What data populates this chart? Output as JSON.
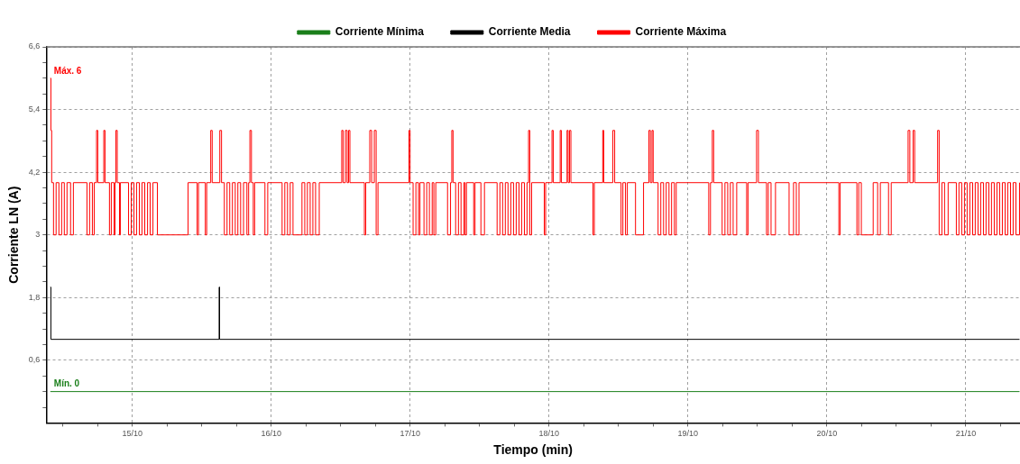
{
  "chart_data": {
    "type": "step",
    "xlabel": "Tiempo (min)",
    "ylabel": "Corriente LN (A)",
    "xlim": [
      "--10-14T09:07",
      "--10-21T09:22"
    ],
    "ylim": [
      -0.6,
      6.6
    ],
    "xticks": [
      {
        "value": "--10-14T12:00",
        "label": null
      },
      {
        "value": "--10-14T18:00",
        "label": null
      },
      {
        "value": "--10-15",
        "label": "15/10"
      },
      {
        "value": "--10-15T06:00",
        "label": null
      },
      {
        "value": "--10-15T12:00",
        "label": null
      },
      {
        "value": "--10-15T18:00",
        "label": null
      },
      {
        "value": "--10-16",
        "label": "16/10"
      },
      {
        "value": "--10-16T06:00",
        "label": null
      },
      {
        "value": "--10-16T12:00",
        "label": null
      },
      {
        "value": "--10-16T18:00",
        "label": null
      },
      {
        "value": "--10-17",
        "label": "17/10"
      },
      {
        "value": "--10-17T06:00",
        "label": null
      },
      {
        "value": "--10-17T12:00",
        "label": null
      },
      {
        "value": "--10-17T18:00",
        "label": null
      },
      {
        "value": "--10-18",
        "label": "18/10"
      },
      {
        "value": "--10-18T06:00",
        "label": null
      },
      {
        "value": "--10-18T12:00",
        "label": null
      },
      {
        "value": "--10-18T18:00",
        "label": null
      },
      {
        "value": "--10-19",
        "label": "19/10"
      },
      {
        "value": "--10-19T06:00",
        "label": null
      },
      {
        "value": "--10-19T12:00",
        "label": null
      },
      {
        "value": "--10-19T18:00",
        "label": null
      },
      {
        "value": "--10-20",
        "label": "20/10"
      },
      {
        "value": "--10-20T06:00",
        "label": null
      },
      {
        "value": "--10-20T12:00",
        "label": null
      },
      {
        "value": "--10-20T18:00",
        "label": null
      },
      {
        "value": "--10-21",
        "label": "21/10"
      },
      {
        "value": "--10-21T06:00",
        "label": null
      }
    ],
    "yticks": [
      {
        "value": -0.3,
        "label": null
      },
      {
        "value": 0,
        "label": null
      },
      {
        "value": 0.3,
        "label": null
      },
      {
        "value": 0.6,
        "label": "0,6"
      },
      {
        "value": 0.9,
        "label": null
      },
      {
        "value": 1.2,
        "label": null
      },
      {
        "value": 1.5,
        "label": null
      },
      {
        "value": 1.8,
        "label": "1,8"
      },
      {
        "value": 2.1,
        "label": null
      },
      {
        "value": 2.4,
        "label": null
      },
      {
        "value": 2.7,
        "label": null
      },
      3,
      {
        "value": 3.3,
        "label": null
      },
      {
        "value": 3.6,
        "label": null
      },
      {
        "value": 3.9,
        "label": null
      },
      {
        "value": 4.2,
        "label": "4,2"
      },
      {
        "value": 4.5,
        "label": null
      },
      {
        "value": 4.8,
        "label": null
      },
      {
        "value": 5.1,
        "label": null
      },
      {
        "value": 5.4,
        "label": "5,4"
      },
      {
        "value": 5.7,
        "label": null
      },
      {
        "value": 6,
        "label": null
      },
      {
        "value": 6.3,
        "label": null
      },
      {
        "value": 6.6,
        "label": "6,6"
      }
    ],
    "grid": true,
    "legend": "top",
    "marker": "none",
    "series": [
      {
        "name": "Corriente Mínima",
        "color": "#1a7f1a",
        "x": [
          "--10-14T09:49",
          "--10-21T09:17"
        ],
        "values": [
          0,
          0
        ]
      },
      {
        "name": "Corriente Media",
        "color": "#000000",
        "x": [
          "--10-14T09:49",
          "--10-14T09:55",
          "--10-15T14:59",
          "--10-15T15:04",
          "--10-21T09:17"
        ],
        "values": [
          2,
          1,
          2,
          1,
          1
        ]
      },
      {
        "name": "Corriente Máxima",
        "color": "#ff0000",
        "x": [
          "--10-14T09:49",
          "--10-14T09:55",
          "--10-14T10:03",
          "--10-14T10:22",
          "--10-14T10:49",
          "--10-14T11:18",
          "--10-14T11:46",
          "--10-14T12:14",
          "--10-14T12:42",
          "--10-14T13:19",
          "--10-14T13:48",
          "--10-14T16:09",
          "--10-14T16:36",
          "--10-14T17:05",
          "--10-14T17:24",
          "--10-14T17:48",
          "--10-14T18:01",
          "--10-14T19:03",
          "--10-14T19:16",
          "--10-14T20:02",
          "--10-14T20:21",
          "--10-14T20:50",
          "--10-14T21:00",
          "--10-14T21:09",
          "--10-14T21:23",
          "--10-14T21:46",
          "--10-14T21:55",
          "--10-14T23:20",
          "--10-14T23:48",
          "--10-15T00:16",
          "--10-15T00:43",
          "--10-15T01:12",
          "--10-15T01:39",
          "--10-15T02:08",
          "--10-15T02:37",
          "--10-15T03:04",
          "--10-15T03:33",
          "--10-15T04:19",
          "--10-15T09:37",
          "--10-15T11:11",
          "--10-15T11:25",
          "--10-15T12:36",
          "--10-15T12:50",
          "--10-15T13:32",
          "--10-15T13:47",
          "--10-15T15:06",
          "--10-15T15:24",
          "--10-15T15:53",
          "--10-15T16:21",
          "--10-15T16:49",
          "--10-15T17:17",
          "--10-15T17:46",
          "--10-15T18:13",
          "--10-15T18:42",
          "--10-15T19:12",
          "--10-15T19:47",
          "--10-15T20:05",
          "--10-15T20:18",
          "--10-15T20:34",
          "--10-15T20:53",
          "--10-15T21:07",
          "--10-15T22:54",
          "--10-15T23:23",
          "--10-16T01:52",
          "--10-16T02:20",
          "--10-16T02:48",
          "--10-16T03:16",
          "--10-16T03:45",
          "--10-16T05:18",
          "--10-16T05:47",
          "--10-16T06:14",
          "--10-16T06:43",
          "--10-16T07:11",
          "--10-16T07:39",
          "--10-16T08:17",
          "--10-16T12:10",
          "--10-16T12:24",
          "--10-16T12:48",
          "--10-16T13:06",
          "--10-16T13:21",
          "--10-16T13:35",
          "--10-16T16:05",
          "--10-16T16:19",
          "--10-16T17:01",
          "--10-16T17:20",
          "--10-16T17:48",
          "--10-16T18:07",
          "--10-16T18:26",
          "--10-16T23:47",
          "--10-16T23:59",
          "--10-17T00:30",
          "--10-17T00:59",
          "--10-17T01:26",
          "--10-17T01:41",
          "--10-17T02:23",
          "--10-17T02:51",
          "--10-17T03:19",
          "--10-17T03:48",
          "--10-17T04:05",
          "--10-17T04:25",
          "--10-17T06:27",
          "--10-17T06:58",
          "--10-17T07:11",
          "--10-17T07:24",
          "--10-17T07:51",
          "--10-17T08:20",
          "--10-17T08:47",
          "--10-17T09:16",
          "--10-17T09:29",
          "--10-17T09:43",
          "--10-17T10:58",
          "--10-17T11:12",
          "--10-17T12:13",
          "--10-17T12:50",
          "--10-17T15:01",
          "--10-17T15:30",
          "--10-17T15:58",
          "--10-17T16:26",
          "--10-17T16:54",
          "--10-17T17:23",
          "--10-17T17:51",
          "--10-17T18:19",
          "--10-17T18:48",
          "--10-17T19:15",
          "--10-17T19:44",
          "--10-17T20:11",
          "--10-17T20:27",
          "--10-17T20:40",
          "--10-17T20:59",
          "--10-17T23:10",
          "--10-17T23:24",
          "--10-18T00:30",
          "--10-18T00:43",
          "--10-18T01:55",
          "--10-18T02:07",
          "--10-18T03:06",
          "--10-18T03:17",
          "--10-18T03:32",
          "--10-18T03:46",
          "--10-18T07:35",
          "--10-18T07:49",
          "--10-18T09:16",
          "--10-18T09:27",
          "--10-18T11:01",
          "--10-18T11:20",
          "--10-18T12:26",
          "--10-18T12:45",
          "--10-18T13:12",
          "--10-18T13:31",
          "--10-18T14:56",
          "--10-18T16:19",
          "--10-18T17:15",
          "--10-18T17:30",
          "--10-18T17:47",
          "--10-18T17:59",
          "--10-18T18:50",
          "--10-18T19:18",
          "--10-18T19:47",
          "--10-18T20:14",
          "--10-18T20:43",
          "--10-18T21:10",
          "--10-18T21:39",
          "--10-18T21:58",
          "--10-19T03:35",
          "--10-19T03:53",
          "--10-19T04:12",
          "--10-19T04:26",
          "--10-19T05:54",
          "--10-19T06:23",
          "--10-19T06:52",
          "--10-19T07:19",
          "--10-19T07:48",
          "--10-19T08:25",
          "--10-19T10:08",
          "--10-19T10:22",
          "--10-19T11:51",
          "--10-19T12:10",
          "--10-19T13:34",
          "--10-19T13:52",
          "--10-19T14:21",
          "--10-19T15:07",
          "--10-19T17:28",
          "--10-19T18:14",
          "--10-19T18:43",
          "--10-19T19:11",
          "--10-20T02:04",
          "--10-20T02:18",
          "--10-20T05:11",
          "--10-20T05:30",
          "--10-20T05:57",
          "--10-20T08:00",
          "--10-20T08:46",
          "--10-20T09:14",
          "--10-20T10:39",
          "--10-20T11:07",
          "--10-20T14:02",
          "--10-20T14:20",
          "--10-20T14:54",
          "--10-20T15:10",
          "--10-20T19:08",
          "--10-20T19:24",
          "--10-20T19:52",
          "--10-20T20:20",
          "--10-20T20:57",
          "--10-20T22:22",
          "--10-20T22:49",
          "--10-20T23:18",
          "--10-20T23:46",
          "--10-21T00:14",
          "--10-21T00:42",
          "--10-21T01:11",
          "--10-21T01:38",
          "--10-21T02:07",
          "--10-21T02:34",
          "--10-21T03:03",
          "--10-21T03:30",
          "--10-21T03:59",
          "--10-21T04:26",
          "--10-21T04:55",
          "--10-21T05:23",
          "--10-21T05:51",
          "--10-21T06:19",
          "--10-21T06:48",
          "--10-21T07:15",
          "--10-21T07:44",
          "--10-21T08:11",
          "--10-21T08:40",
          "--10-21T09:17"
        ],
        "values": [
          6,
          5,
          4,
          3,
          4,
          3,
          4,
          3,
          4,
          3,
          4,
          3,
          4,
          3,
          4,
          5,
          4,
          5,
          4,
          3,
          4,
          3,
          4,
          5,
          4,
          3,
          4,
          3,
          4,
          3,
          4,
          3,
          4,
          3,
          4,
          3,
          4,
          3,
          4,
          3,
          4,
          3,
          4,
          5,
          4,
          5,
          4,
          3,
          4,
          3,
          4,
          3,
          4,
          3,
          4,
          3,
          4,
          5,
          4,
          3,
          4,
          3,
          4,
          3,
          4,
          3,
          4,
          3,
          4,
          3,
          4,
          3,
          4,
          3,
          4,
          5,
          4,
          5,
          4,
          5,
          4,
          3,
          4,
          5,
          4,
          5,
          3,
          4,
          5,
          4,
          3,
          4,
          3,
          4,
          3,
          4,
          3,
          4,
          3,
          4,
          3,
          4,
          5,
          4,
          3,
          4,
          3,
          4,
          3,
          4,
          3,
          4,
          3,
          4,
          3,
          4,
          3,
          4,
          3,
          4,
          3,
          4,
          3,
          4,
          3,
          4,
          5,
          3,
          4,
          3,
          4,
          5,
          4,
          5,
          4,
          5,
          4,
          5,
          4,
          3,
          4,
          5,
          4,
          5,
          4,
          3,
          4,
          3,
          4,
          3,
          4,
          5,
          4,
          5,
          4,
          3,
          4,
          3,
          4,
          3,
          4,
          3,
          4,
          3,
          4,
          5,
          4,
          3,
          4,
          3,
          4,
          3,
          4,
          3,
          4,
          5,
          4,
          3,
          4,
          3,
          4,
          3,
          4,
          3,
          4,
          3,
          4,
          3,
          4,
          3,
          4,
          3,
          4,
          3,
          4,
          5,
          4,
          5,
          4,
          5,
          3,
          4,
          3,
          4,
          3,
          4,
          3,
          4,
          3,
          4,
          3,
          4,
          3,
          4,
          3,
          4,
          3,
          4,
          3,
          4,
          3,
          4,
          3,
          4,
          3,
          4,
          3,
          4
        ]
      }
    ],
    "annotations": [
      {
        "text": "Máx. 6",
        "x": "--10-14T09:49",
        "y": 6
      },
      {
        "text": "Mín. 0",
        "x": "--10-14T09:49",
        "y": 0
      }
    ]
  }
}
